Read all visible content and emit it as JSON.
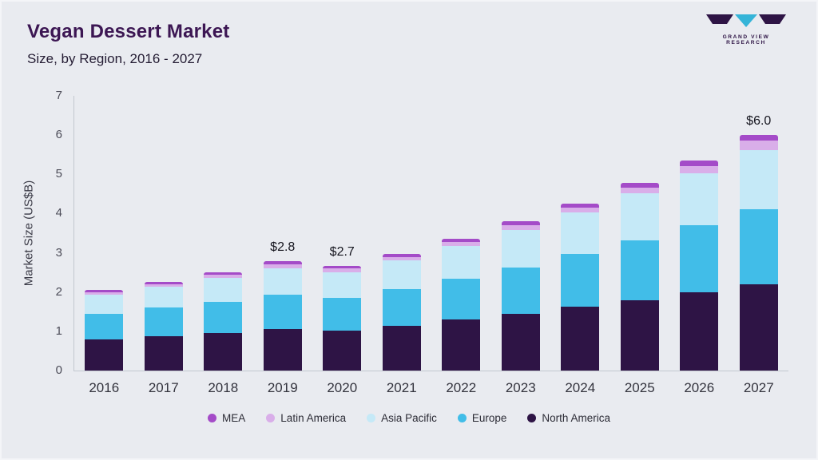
{
  "header": {
    "title": "Vegan Dessert Market",
    "subtitle": "Size, by Region, 2016 - 2027"
  },
  "logo": {
    "text": "GRAND VIEW RESEARCH"
  },
  "chart_data": {
    "type": "bar",
    "variant": "stacked",
    "title": "Vegan Dessert Market Size, by Region, 2016 - 2027",
    "xlabel": "",
    "ylabel": "Market Size (US$B)",
    "ylim": [
      0,
      7
    ],
    "yticks": [
      7,
      6,
      5,
      4,
      3,
      2,
      1,
      0
    ],
    "grid": false,
    "legend_position": "bottom",
    "categories": [
      "2016",
      "2017",
      "2018",
      "2019",
      "2020",
      "2021",
      "2022",
      "2023",
      "2024",
      "2025",
      "2026",
      "2027"
    ],
    "series": [
      {
        "name": "North America",
        "color": "#2e1445",
        "values": [
          0.8,
          0.88,
          0.96,
          1.05,
          1.02,
          1.15,
          1.3,
          1.45,
          1.62,
          1.8,
          2.0,
          2.2
        ]
      },
      {
        "name": "Europe",
        "color": "#41bde8",
        "values": [
          0.65,
          0.72,
          0.8,
          0.88,
          0.84,
          0.93,
          1.05,
          1.18,
          1.35,
          1.52,
          1.7,
          1.92
        ]
      },
      {
        "name": "Asia Pacific",
        "color": "#c5e9f7",
        "values": [
          0.48,
          0.53,
          0.6,
          0.67,
          0.64,
          0.72,
          0.82,
          0.95,
          1.05,
          1.2,
          1.32,
          1.5
        ]
      },
      {
        "name": "Latin America",
        "color": "#d9aee9",
        "values": [
          0.07,
          0.07,
          0.08,
          0.1,
          0.1,
          0.1,
          0.11,
          0.13,
          0.14,
          0.15,
          0.2,
          0.24
        ]
      },
      {
        "name": "MEA",
        "color": "#a44bc8",
        "values": [
          0.05,
          0.05,
          0.06,
          0.08,
          0.07,
          0.07,
          0.08,
          0.09,
          0.1,
          0.11,
          0.13,
          0.14
        ]
      }
    ],
    "legend": [
      "MEA",
      "Latin America",
      "Asia Pacific",
      "Europe",
      "North America"
    ],
    "annotations": [
      {
        "category": "2019",
        "label": "$2.8"
      },
      {
        "category": "2020",
        "label": "$2.7"
      },
      {
        "category": "2027",
        "label": "$6.0"
      }
    ]
  }
}
